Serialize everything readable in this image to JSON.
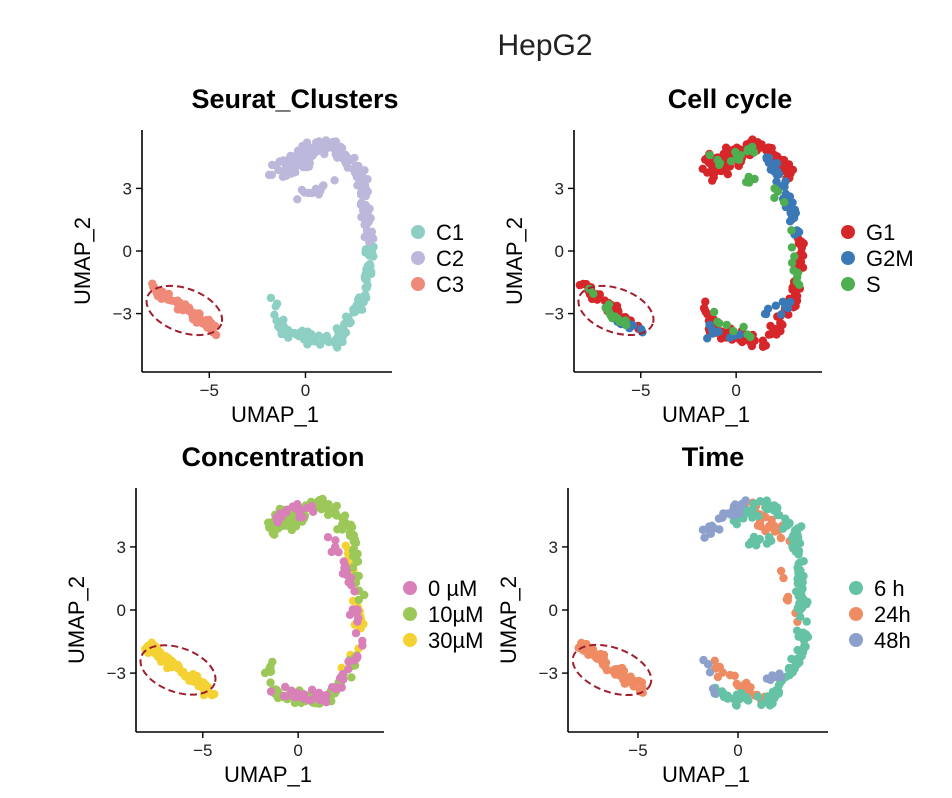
{
  "figure_title": "HepG2",
  "chart_data": [
    {
      "type": "scatter",
      "title": "Seurat_Clusters",
      "xlabel": "UMAP_1",
      "ylabel": "UMAP_2",
      "xlim": [
        -8.5,
        4.5
      ],
      "ylim": [
        -5.8,
        5.8
      ],
      "xticks": [
        -5,
        0
      ],
      "yticks": [
        -3,
        0,
        3
      ],
      "xtick_labels": [
        "−5",
        "0"
      ],
      "ytick_labels": [
        "−3",
        "0",
        "3"
      ],
      "grid": false,
      "legend_position": "right",
      "legend": [
        {
          "label": "C1",
          "color": "#8ecfc4"
        },
        {
          "label": "C2",
          "color": "#bcb8db"
        },
        {
          "label": "C3",
          "color": "#f08a78"
        }
      ],
      "highlight": {
        "shape": "ellipse",
        "cx": -6.3,
        "cy": -2.85,
        "rx": 2.05,
        "ry": 1.05,
        "angle": 20,
        "color": "#a01e2e"
      },
      "groups": [
        {
          "label": "C3",
          "color": "#f08a78",
          "regions": [
            {
              "x1": -7.9,
              "y1": -1.7,
              "x2": -4.6,
              "y2": -3.9,
              "spread": 0.32,
              "n": 70
            }
          ]
        },
        {
          "label": "C1",
          "color": "#8ecfc4",
          "regions": [
            {
              "x1": -1.7,
              "y1": -2.4,
              "x2": -1.2,
              "y2": -3.9,
              "spread": 0.28,
              "n": 14
            },
            {
              "x1": -1.2,
              "y1": -3.9,
              "x2": 1.7,
              "y2": -4.4,
              "spread": 0.38,
              "n": 42
            },
            {
              "x1": 1.7,
              "y1": -4.2,
              "x2": 3.2,
              "y2": -2.0,
              "spread": 0.38,
              "n": 38
            },
            {
              "x1": 3.1,
              "y1": -2.0,
              "x2": 3.4,
              "y2": 0.3,
              "spread": 0.3,
              "n": 26
            }
          ]
        },
        {
          "label": "C2",
          "color": "#bcb8db",
          "regions": [
            {
              "x1": -1.6,
              "y1": 4.1,
              "x2": 1.4,
              "y2": 5.2,
              "spread": 0.45,
              "n": 60
            },
            {
              "x1": 1.4,
              "y1": 5.1,
              "x2": 3.0,
              "y2": 3.6,
              "spread": 0.4,
              "n": 45
            },
            {
              "x1": 2.9,
              "y1": 3.6,
              "x2": 3.3,
              "y2": 0.6,
              "spread": 0.35,
              "n": 45
            },
            {
              "x1": -1.6,
              "y1": 3.6,
              "x2": 0.3,
              "y2": 4.4,
              "spread": 0.45,
              "n": 25
            },
            {
              "x1": -0.5,
              "y1": 2.6,
              "x2": 1.8,
              "y2": 3.4,
              "spread": 0.35,
              "n": 14
            }
          ]
        }
      ]
    },
    {
      "type": "scatter",
      "title": "Cell cycle",
      "xlabel": "UMAP_1",
      "ylabel": "UMAP_2",
      "xlim": [
        -8.5,
        4.5
      ],
      "ylim": [
        -5.8,
        5.8
      ],
      "xticks": [
        -5,
        0
      ],
      "yticks": [
        -3,
        0,
        3
      ],
      "xtick_labels": [
        "−5",
        "0"
      ],
      "ytick_labels": [
        "−3",
        "0",
        "3"
      ],
      "grid": false,
      "legend_position": "right",
      "legend": [
        {
          "label": "G1",
          "color": "#d7262a"
        },
        {
          "label": "G2M",
          "color": "#3b79b6"
        },
        {
          "label": "S",
          "color": "#4fae4f"
        }
      ],
      "highlight": {
        "shape": "ellipse",
        "cx": -6.3,
        "cy": -2.85,
        "rx": 2.05,
        "ry": 1.05,
        "angle": 20,
        "color": "#a01e2e"
      },
      "groups": [
        {
          "label": "G1",
          "color": "#d7262a",
          "regions": [
            {
              "x1": -7.9,
              "y1": -1.7,
              "x2": -5.2,
              "y2": -3.7,
              "spread": 0.32,
              "n": 42
            },
            {
              "x1": -1.7,
              "y1": -2.4,
              "x2": -1.2,
              "y2": -3.9,
              "spread": 0.3,
              "n": 14
            },
            {
              "x1": -1.2,
              "y1": -3.9,
              "x2": 1.7,
              "y2": -4.4,
              "spread": 0.38,
              "n": 40
            },
            {
              "x1": 1.7,
              "y1": -4.2,
              "x2": 3.2,
              "y2": -2.0,
              "spread": 0.38,
              "n": 35
            },
            {
              "x1": 3.1,
              "y1": -2.0,
              "x2": 3.4,
              "y2": 0.6,
              "spread": 0.32,
              "n": 34
            },
            {
              "x1": -1.6,
              "y1": 4.1,
              "x2": 1.4,
              "y2": 5.2,
              "spread": 0.45,
              "n": 55
            },
            {
              "x1": 1.4,
              "y1": 5.1,
              "x2": 3.0,
              "y2": 3.6,
              "spread": 0.4,
              "n": 30
            },
            {
              "x1": -1.6,
              "y1": 3.6,
              "x2": 0.3,
              "y2": 4.4,
              "spread": 0.45,
              "n": 22
            }
          ]
        },
        {
          "label": "G2M",
          "color": "#3b79b6",
          "regions": [
            {
              "x1": -6.3,
              "y1": -3.4,
              "x2": -4.7,
              "y2": -3.9,
              "spread": 0.22,
              "n": 14
            },
            {
              "x1": 1.6,
              "y1": 4.4,
              "x2": 3.0,
              "y2": 2.2,
              "spread": 0.35,
              "n": 32
            },
            {
              "x1": 2.9,
              "y1": 2.2,
              "x2": 3.3,
              "y2": 0.3,
              "spread": 0.3,
              "n": 14
            },
            {
              "x1": 1.0,
              "y1": -3.6,
              "x2": 3.1,
              "y2": -2.2,
              "spread": 0.4,
              "n": 10
            },
            {
              "x1": -1.3,
              "y1": -3.8,
              "x2": 0.6,
              "y2": -4.4,
              "spread": 0.4,
              "n": 8
            }
          ]
        },
        {
          "label": "S",
          "color": "#4fae4f",
          "regions": [
            {
              "x1": -7.8,
              "y1": -2.0,
              "x2": -5.6,
              "y2": -3.6,
              "spread": 0.35,
              "n": 16
            },
            {
              "x1": -1.4,
              "y1": 4.2,
              "x2": 1.2,
              "y2": 4.8,
              "spread": 0.45,
              "n": 14
            },
            {
              "x1": 0.5,
              "y1": 3.4,
              "x2": 2.4,
              "y2": 2.6,
              "spread": 0.35,
              "n": 8
            },
            {
              "x1": 2.8,
              "y1": 1.0,
              "x2": 3.3,
              "y2": -1.8,
              "spread": 0.3,
              "n": 10
            },
            {
              "x1": -1.4,
              "y1": -3.0,
              "x2": 1.5,
              "y2": -4.3,
              "spread": 0.4,
              "n": 8
            }
          ]
        }
      ]
    },
    {
      "type": "scatter",
      "title": "Concentration",
      "xlabel": "UMAP_1",
      "ylabel": "UMAP_2",
      "xlim": [
        -8.5,
        4.5
      ],
      "ylim": [
        -5.8,
        5.8
      ],
      "xticks": [
        -5,
        0
      ],
      "yticks": [
        -3,
        0,
        3
      ],
      "xtick_labels": [
        "−5",
        "0"
      ],
      "ytick_labels": [
        "−3",
        "0",
        "3"
      ],
      "grid": false,
      "legend_position": "right",
      "legend": [
        {
          "label": "0 µM",
          "color": "#d980b8"
        },
        {
          "label": "10µM",
          "color": "#9bc859"
        },
        {
          "label": "30µM",
          "color": "#f5d234"
        }
      ],
      "highlight": {
        "shape": "ellipse",
        "cx": -6.3,
        "cy": -2.85,
        "rx": 2.05,
        "ry": 1.05,
        "angle": 20,
        "color": "#a01e2e"
      },
      "groups": [
        {
          "label": "30µM",
          "color": "#f5d234",
          "regions": [
            {
              "x1": -7.9,
              "y1": -1.7,
              "x2": -4.6,
              "y2": -3.9,
              "spread": 0.32,
              "n": 70
            },
            {
              "x1": 2.6,
              "y1": 3.2,
              "x2": 3.3,
              "y2": -1.0,
              "spread": 0.32,
              "n": 26
            },
            {
              "x1": 2.2,
              "y1": -2.8,
              "x2": 3.2,
              "y2": -1.8,
              "spread": 0.3,
              "n": 6
            }
          ]
        },
        {
          "label": "10µM",
          "color": "#9bc859",
          "regions": [
            {
              "x1": -1.6,
              "y1": 4.1,
              "x2": 1.4,
              "y2": 5.2,
              "spread": 0.45,
              "n": 42
            },
            {
              "x1": 1.4,
              "y1": 5.1,
              "x2": 3.0,
              "y2": 3.6,
              "spread": 0.4,
              "n": 26
            },
            {
              "x1": 2.9,
              "y1": 3.6,
              "x2": 3.3,
              "y2": 0.4,
              "spread": 0.35,
              "n": 20
            },
            {
              "x1": -1.6,
              "y1": 3.6,
              "x2": 0.3,
              "y2": 4.4,
              "spread": 0.45,
              "n": 16
            },
            {
              "x1": -1.7,
              "y1": -2.4,
              "x2": -1.2,
              "y2": -3.9,
              "spread": 0.3,
              "n": 10
            },
            {
              "x1": -1.2,
              "y1": -3.9,
              "x2": 1.7,
              "y2": -4.4,
              "spread": 0.38,
              "n": 30
            },
            {
              "x1": 1.7,
              "y1": -4.2,
              "x2": 3.2,
              "y2": -2.0,
              "spread": 0.38,
              "n": 26
            }
          ]
        },
        {
          "label": "0 µM",
          "color": "#d980b8",
          "regions": [
            {
              "x1": -1.4,
              "y1": 4.3,
              "x2": 1.4,
              "y2": 5.0,
              "spread": 0.45,
              "n": 20
            },
            {
              "x1": 1.6,
              "y1": 3.4,
              "x2": 3.2,
              "y2": 0.8,
              "spread": 0.35,
              "n": 18
            },
            {
              "x1": 2.9,
              "y1": 0.6,
              "x2": 3.3,
              "y2": -1.8,
              "spread": 0.3,
              "n": 10
            },
            {
              "x1": -1.2,
              "y1": -3.8,
              "x2": 1.6,
              "y2": -4.3,
              "spread": 0.4,
              "n": 20
            },
            {
              "x1": 1.8,
              "y1": -3.9,
              "x2": 3.0,
              "y2": -2.3,
              "spread": 0.35,
              "n": 12
            }
          ]
        }
      ]
    },
    {
      "type": "scatter",
      "title": "Time",
      "xlabel": "UMAP_1",
      "ylabel": "UMAP_2",
      "xlim": [
        -8.5,
        4.5
      ],
      "ylim": [
        -5.8,
        5.8
      ],
      "xticks": [
        -5,
        0
      ],
      "yticks": [
        -3,
        0,
        3
      ],
      "xtick_labels": [
        "−5",
        "0"
      ],
      "ytick_labels": [
        "−3",
        "0",
        "3"
      ],
      "grid": false,
      "legend_position": "right",
      "legend": [
        {
          "label": "6 h",
          "color": "#66c2a5"
        },
        {
          "label": "24h",
          "color": "#ef8b62"
        },
        {
          "label": "48h",
          "color": "#8da0cb"
        }
      ],
      "highlight": {
        "shape": "ellipse",
        "cx": -6.3,
        "cy": -2.85,
        "rx": 2.05,
        "ry": 1.05,
        "angle": 20,
        "color": "#a01e2e"
      },
      "groups": [
        {
          "label": "24h",
          "color": "#ef8b62",
          "regions": [
            {
              "x1": -7.9,
              "y1": -1.7,
              "x2": -4.6,
              "y2": -3.9,
              "spread": 0.32,
              "n": 70
            },
            {
              "x1": 0.4,
              "y1": 5.0,
              "x2": 2.8,
              "y2": 3.2,
              "spread": 0.42,
              "n": 30
            },
            {
              "x1": -1.6,
              "y1": -2.4,
              "x2": 1.4,
              "y2": -4.3,
              "spread": 0.4,
              "n": 22
            },
            {
              "x1": 2.0,
              "y1": 1.8,
              "x2": 3.0,
              "y2": -0.8,
              "spread": 0.3,
              "n": 8
            }
          ]
        },
        {
          "label": "6 h",
          "color": "#66c2a5",
          "regions": [
            {
              "x1": 1.4,
              "y1": 5.1,
              "x2": 3.0,
              "y2": 3.6,
              "spread": 0.4,
              "n": 30
            },
            {
              "x1": 2.9,
              "y1": 3.6,
              "x2": 3.3,
              "y2": 0.3,
              "spread": 0.35,
              "n": 40
            },
            {
              "x1": 3.1,
              "y1": 0.3,
              "x2": 3.3,
              "y2": -2.0,
              "spread": 0.3,
              "n": 24
            },
            {
              "x1": 1.7,
              "y1": -4.2,
              "x2": 3.2,
              "y2": -2.0,
              "spread": 0.38,
              "n": 34
            },
            {
              "x1": -1.2,
              "y1": -3.9,
              "x2": 1.7,
              "y2": -4.4,
              "spread": 0.38,
              "n": 28
            },
            {
              "x1": -0.5,
              "y1": 4.2,
              "x2": 1.2,
              "y2": 4.9,
              "spread": 0.4,
              "n": 18
            },
            {
              "x1": 0.2,
              "y1": 3.0,
              "x2": 2.0,
              "y2": 3.5,
              "spread": 0.35,
              "n": 10
            }
          ]
        },
        {
          "label": "48h",
          "color": "#8da0cb",
          "regions": [
            {
              "x1": -1.6,
              "y1": 3.6,
              "x2": 0.3,
              "y2": 5.0,
              "spread": 0.45,
              "n": 26
            },
            {
              "x1": -1.7,
              "y1": -2.4,
              "x2": -1.2,
              "y2": -3.9,
              "spread": 0.3,
              "n": 6
            },
            {
              "x1": 1.4,
              "y1": -3.4,
              "x2": 2.6,
              "y2": -2.8,
              "spread": 0.35,
              "n": 6
            }
          ]
        }
      ]
    }
  ]
}
